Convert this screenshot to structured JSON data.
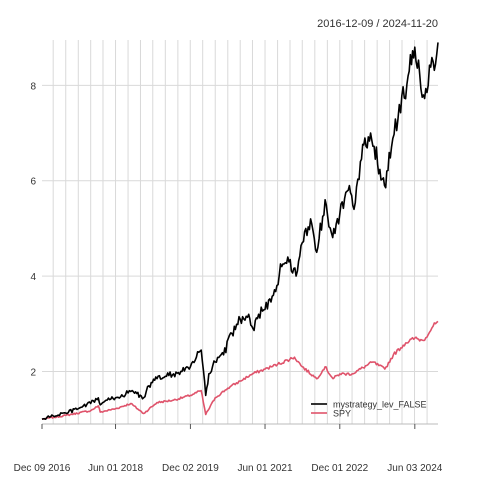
{
  "chart_data": {
    "type": "line",
    "title": "2016-12-09 / 2024-11-20",
    "xlabel": "",
    "ylabel": "",
    "x_range": [
      "2016-12-09",
      "2024-11-20"
    ],
    "ylim": [
      0.9,
      8.95
    ],
    "y_ticks": [
      2,
      4,
      6,
      8
    ],
    "x_tick_labels": [
      {
        "date": "2016-12-09",
        "label": "Dec 09 2016"
      },
      {
        "date": "2018-06-01",
        "label": "Jun 01 2018"
      },
      {
        "date": "2019-12-02",
        "label": "Dec 02 2019"
      },
      {
        "date": "2021-06-01",
        "label": "Jun 01 2021"
      },
      {
        "date": "2022-12-01",
        "label": "Dec 01 2022"
      },
      {
        "date": "2024-06-03",
        "label": "Jun 03 2024"
      }
    ],
    "grid": true,
    "legend_position": "bottom-right",
    "series": [
      {
        "name": "mystrategy_lev_FALSE",
        "color": "#000000",
        "points": [
          [
            "2016-12-09",
            1.0
          ],
          [
            "2017-03-01",
            1.07
          ],
          [
            "2017-06-01",
            1.13
          ],
          [
            "2017-09-01",
            1.22
          ],
          [
            "2017-12-01",
            1.33
          ],
          [
            "2018-01-26",
            1.45
          ],
          [
            "2018-02-09",
            1.3
          ],
          [
            "2018-04-01",
            1.4
          ],
          [
            "2018-06-01",
            1.45
          ],
          [
            "2018-09-01",
            1.55
          ],
          [
            "2018-10-01",
            1.6
          ],
          [
            "2018-12-24",
            1.45
          ],
          [
            "2019-02-01",
            1.7
          ],
          [
            "2019-04-01",
            1.85
          ],
          [
            "2019-06-01",
            1.9
          ],
          [
            "2019-08-01",
            1.95
          ],
          [
            "2019-10-01",
            2.0
          ],
          [
            "2019-12-02",
            2.1
          ],
          [
            "2020-01-15",
            2.3
          ],
          [
            "2020-02-19",
            2.45
          ],
          [
            "2020-03-23",
            1.5
          ],
          [
            "2020-04-15",
            1.95
          ],
          [
            "2020-06-01",
            2.2
          ],
          [
            "2020-08-01",
            2.35
          ],
          [
            "2020-10-01",
            2.8
          ],
          [
            "2020-12-01",
            3.1
          ],
          [
            "2021-02-01",
            3.2
          ],
          [
            "2021-03-05",
            2.9
          ],
          [
            "2021-04-15",
            3.2
          ],
          [
            "2021-06-01",
            3.3
          ],
          [
            "2021-08-01",
            3.6
          ],
          [
            "2021-10-01",
            4.2
          ],
          [
            "2021-11-15",
            4.4
          ],
          [
            "2022-01-15",
            4.0
          ],
          [
            "2022-03-01",
            4.7
          ],
          [
            "2022-05-01",
            5.2
          ],
          [
            "2022-06-15",
            4.5
          ],
          [
            "2022-08-15",
            5.6
          ],
          [
            "2022-10-01",
            4.9
          ],
          [
            "2022-12-01",
            5.3
          ],
          [
            "2023-02-01",
            5.8
          ],
          [
            "2023-03-15",
            5.4
          ],
          [
            "2023-05-01",
            6.4
          ],
          [
            "2023-07-15",
            7.0
          ],
          [
            "2023-10-25",
            5.9
          ],
          [
            "2023-12-15",
            6.7
          ],
          [
            "2024-02-01",
            7.3
          ],
          [
            "2024-04-15",
            8.2
          ],
          [
            "2024-06-03",
            8.8
          ],
          [
            "2024-08-05",
            7.8
          ],
          [
            "2024-10-15",
            8.5
          ],
          [
            "2024-11-20",
            8.9
          ]
        ]
      },
      {
        "name": "SPY",
        "color": "#DF536B",
        "points": [
          [
            "2016-12-09",
            1.0
          ],
          [
            "2017-06-01",
            1.08
          ],
          [
            "2017-12-01",
            1.18
          ],
          [
            "2018-01-26",
            1.28
          ],
          [
            "2018-02-09",
            1.15
          ],
          [
            "2018-06-01",
            1.22
          ],
          [
            "2018-09-20",
            1.33
          ],
          [
            "2018-12-24",
            1.12
          ],
          [
            "2019-04-01",
            1.35
          ],
          [
            "2019-08-01",
            1.4
          ],
          [
            "2019-12-02",
            1.5
          ],
          [
            "2020-02-19",
            1.6
          ],
          [
            "2020-03-23",
            1.1
          ],
          [
            "2020-06-01",
            1.45
          ],
          [
            "2020-09-01",
            1.65
          ],
          [
            "2020-12-01",
            1.8
          ],
          [
            "2021-03-01",
            1.95
          ],
          [
            "2021-06-01",
            2.05
          ],
          [
            "2021-09-01",
            2.15
          ],
          [
            "2022-01-03",
            2.3
          ],
          [
            "2022-03-01",
            2.1
          ],
          [
            "2022-06-15",
            1.85
          ],
          [
            "2022-08-15",
            2.1
          ],
          [
            "2022-10-12",
            1.85
          ],
          [
            "2022-12-01",
            1.95
          ],
          [
            "2023-03-01",
            1.95
          ],
          [
            "2023-07-31",
            2.2
          ],
          [
            "2023-10-27",
            2.05
          ],
          [
            "2023-12-29",
            2.35
          ],
          [
            "2024-03-28",
            2.6
          ],
          [
            "2024-06-03",
            2.7
          ],
          [
            "2024-08-05",
            2.65
          ],
          [
            "2024-10-15",
            2.95
          ],
          [
            "2024-11-20",
            3.05
          ]
        ]
      }
    ]
  }
}
